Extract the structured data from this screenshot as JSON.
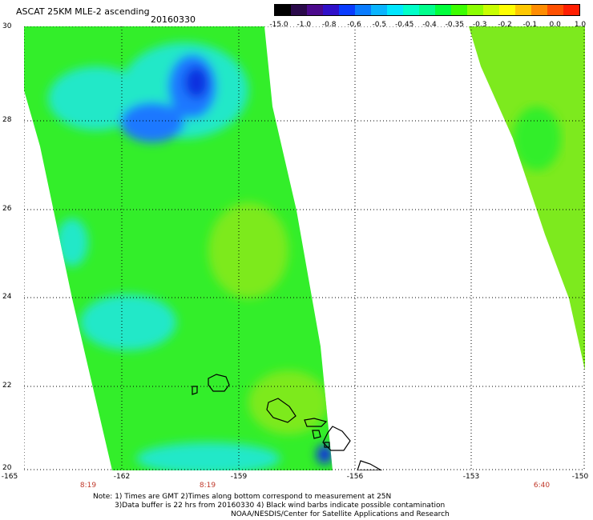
{
  "title": "ASCAT 25KM MLE-2 ascending",
  "date": "20160330",
  "colorbar": {
    "labels": [
      "-15.0",
      "-1.0",
      "-0.8",
      "-0.6",
      "-0.5",
      "-0.45",
      "-0.4",
      "-0.35",
      "-0.3",
      "-0.2",
      "-0.1",
      "0.0",
      "1.0"
    ],
    "colors": [
      "#000000",
      "#2a0a4a",
      "#4b0a8c",
      "#3010c8",
      "#0a3cff",
      "#0a7cff",
      "#0ab4ff",
      "#00e6ff",
      "#00ffc8",
      "#00ff8c",
      "#00ff3c",
      "#3cff00",
      "#8cff00",
      "#c8ff00",
      "#ffff00",
      "#ffc800",
      "#ff8c00",
      "#ff5000",
      "#ff1e00"
    ]
  },
  "axes": {
    "y_labels": [
      "30",
      "28",
      "26",
      "24",
      "22",
      "20"
    ],
    "x_labels": [
      "-165",
      "-162",
      "-159",
      "-156",
      "-153",
      "-150"
    ],
    "times": [
      "8:19",
      "8:19",
      "6:40"
    ]
  },
  "notes": {
    "line1": "Note: 1) Times are GMT 2)Times along bottom correspond to measurement at 25N",
    "line2": "3)Data buffer is 22 hrs from 20160330 4) Black wind barbs indicate possible contamination",
    "line3": "NOAA/NESDIS/Center for Satellite Applications and Research"
  },
  "colors": {
    "swath_green": "#33ee2a",
    "swath_light": "#7dea1e",
    "swath_cyan": "#22e8c8",
    "swath_blue": "#1a78ff",
    "swath_dark": "#1030e0"
  }
}
